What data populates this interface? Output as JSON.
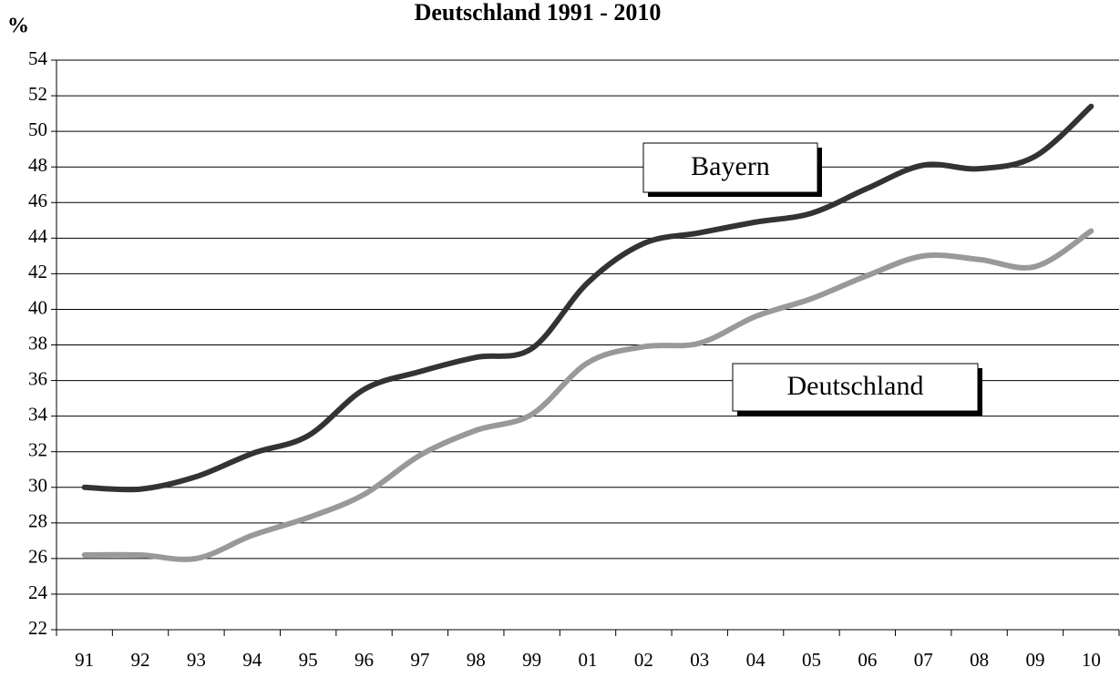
{
  "chart_data": {
    "type": "line",
    "title": "Deutschland 1991 - 2010",
    "y_label": "%",
    "categories": [
      "91",
      "92",
      "93",
      "94",
      "95",
      "96",
      "97",
      "98",
      "99",
      "01",
      "02",
      "03",
      "04",
      "05",
      "06",
      "07",
      "08",
      "09",
      "10"
    ],
    "series": [
      {
        "name": "Bayern",
        "color": "#333333",
        "values": [
          30.0,
          29.9,
          30.6,
          31.9,
          32.9,
          35.5,
          36.5,
          37.3,
          37.8,
          41.5,
          43.7,
          44.3,
          44.9,
          45.4,
          46.8,
          48.1,
          47.9,
          48.6,
          51.4
        ]
      },
      {
        "name": "Deutschland",
        "color": "#999999",
        "values": [
          26.2,
          26.2,
          26.0,
          27.3,
          28.3,
          29.6,
          31.8,
          33.2,
          34.1,
          37.0,
          37.9,
          38.1,
          39.6,
          40.6,
          41.9,
          43.0,
          42.8,
          42.4,
          44.4
        ]
      }
    ],
    "ylim": [
      22,
      54
    ],
    "yticks": [
      22,
      24,
      26,
      28,
      30,
      32,
      34,
      36,
      38,
      40,
      42,
      44,
      46,
      48,
      50,
      52,
      54
    ],
    "grid": true
  }
}
